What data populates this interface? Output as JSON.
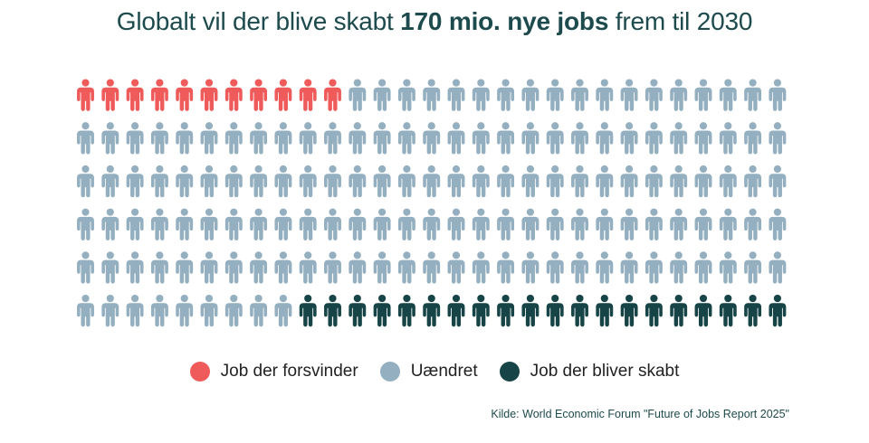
{
  "title": {
    "prefix": "Globalt vil der blive skabt ",
    "highlight": "170 mio. nye jobs",
    "suffix": " frem til 2030"
  },
  "chart_data": {
    "type": "pictogram",
    "rows": 6,
    "columns": 29,
    "total_icons": 174,
    "categories": [
      {
        "name": "Job der forsvinder",
        "count": 11,
        "color": "#ef5b5b"
      },
      {
        "name": "Uændret",
        "count": 143,
        "color": "#94afc0"
      },
      {
        "name": "Job der bliver skabt",
        "count": 20,
        "color": "#174446"
      }
    ],
    "legend_position": "bottom-center"
  },
  "legend": {
    "items": [
      {
        "label": "Job der forsvinder",
        "color": "#ef5b5b"
      },
      {
        "label": "Uændret",
        "color": "#94afc0"
      },
      {
        "label": "Job der bliver skabt",
        "color": "#174446"
      }
    ]
  },
  "source": "Kilde: World Economic Forum \"Future of Jobs Report 2025\""
}
